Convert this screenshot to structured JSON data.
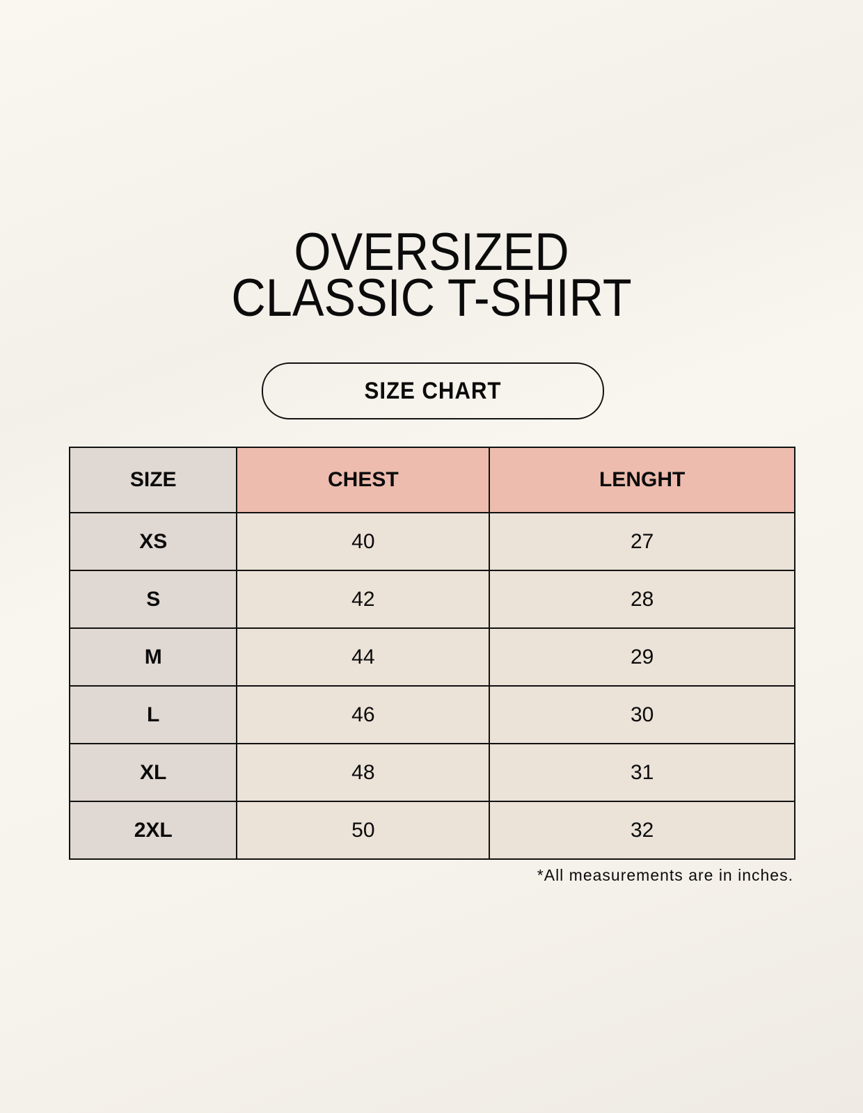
{
  "title": {
    "line1": "OVERSIZED",
    "line2": "CLASSIC T-SHIRT"
  },
  "badge": "SIZE CHART",
  "table": {
    "headers": [
      "SIZE",
      "CHEST",
      "LENGHT"
    ],
    "rows": [
      [
        "XS",
        "40",
        "27"
      ],
      [
        "S",
        "42",
        "28"
      ],
      [
        "M",
        "44",
        "29"
      ],
      [
        "L",
        "46",
        "30"
      ],
      [
        "XL",
        "48",
        "31"
      ],
      [
        "2XL",
        "50",
        "32"
      ]
    ]
  },
  "footnote": "*All measurements are in inches.",
  "colors": {
    "background": "#f8f5ee",
    "size_column": "#e0d8d2",
    "header_accent": "#edbcae",
    "data_cells": "#ebe2d8"
  }
}
